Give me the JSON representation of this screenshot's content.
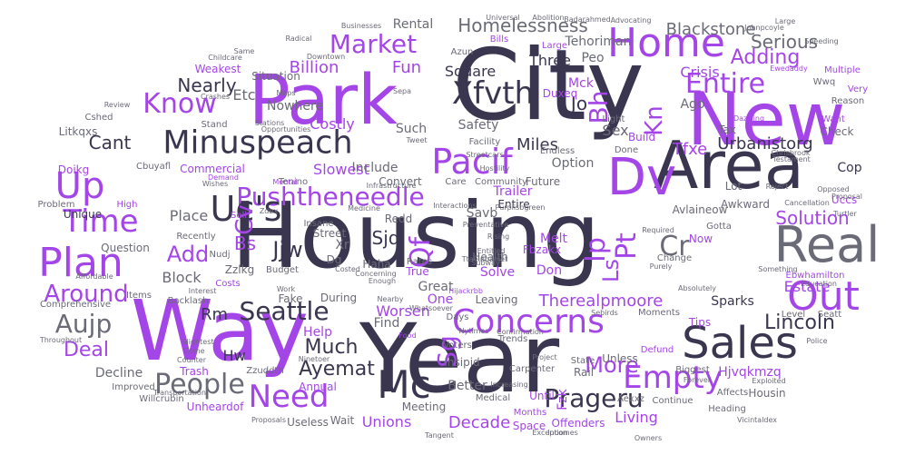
{
  "wordcloud": {
    "colors": {
      "dark": "#3a3650",
      "purple": "#a445e8",
      "gray": "#6b6b78",
      "light_purple": "#c56ff2"
    },
    "words": [
      "Housing",
      "Year",
      "City",
      "Way",
      "Park",
      "New",
      "Area",
      "Dv",
      "Real",
      "Home",
      "Concerns",
      "Pacif",
      "Plan",
      "Sales",
      "Out",
      "Up",
      "Minuspeach",
      "Pushtheneedle",
      "Time",
      "Seattle",
      "Empty",
      "Entire",
      "Market",
      "Mc",
      "Need",
      "Know",
      "Uc's",
      "Xfvth",
      "People",
      "Around",
      "Qf",
      "Ip",
      "Sg",
      "Pt",
      "Ls",
      "Cv",
      "Bh",
      "Kn",
      "Add",
      "Aujp",
      "Prageru",
      "Lincoln",
      "Solution",
      "Jjw",
      "Cr",
      "Homelessness",
      "Blackstone",
      "Serious",
      "Adding",
      "Nearly",
      "Billion",
      "Deal",
      "Much",
      "Ayemat",
      "More",
      "Decade",
      "Unions",
      "Square",
      "Three",
      "Crisis",
      "Urbanistorg",
      "Tfxe",
      "Costly",
      "Cant",
      "Block",
      "Sex",
      "Miles",
      "Fun",
      "Etc",
      "Rm",
      "Hw",
      "Slowest",
      "Sjq",
      "Estate",
      "Therealpmoore",
      "Worsen",
      "Zzlkg",
      "Place",
      "Bs",
      "Tehoriman",
      "Rental",
      "Nowhere",
      "Annual",
      "Sparks",
      "Living",
      "Safety",
      "Mck",
      "Jo",
      "Ago",
      "Commercial",
      "Help",
      "Weakest",
      "Situation",
      "Entire",
      "Better",
      "Find",
      "Trailer",
      "Savb",
      "Option",
      "Large",
      "Litkqxs",
      "Doikg",
      "Unique",
      "Question",
      "Comprehensive",
      "Decline",
      "Improved",
      "Willcrubin",
      "Unheardof",
      "Trash",
      "Useless",
      "Wait",
      "Meeting",
      "Insipid",
      "Space",
      "Months",
      "Duxeq",
      "Until",
      "Fzk",
      "Aexxz",
      "Heading",
      "Hjvqkmzq",
      "Biggest",
      "Affects",
      "Housin",
      "Level",
      "Seatt",
      "Ebwhamilton",
      "Police",
      "Tips",
      "Moments",
      "Unless",
      "Rail",
      "Defund",
      "Carpenter",
      "Project",
      "State",
      "Offenders",
      "Cop",
      "Uccs",
      "Turtler",
      "Lot",
      "Awkward",
      "Avlaineow",
      "Now",
      "Don",
      "Melt",
      "Fbzakx",
      "Solve",
      "Great",
      "Include",
      "Convert",
      "Community",
      "Future",
      "Endless",
      "Done",
      "Build",
      "Light",
      "Tax",
      "Check",
      "Reason",
      "Very",
      "Want",
      "Dazzling",
      "Multiple",
      "Ewedaddy",
      "Wwq",
      "Large",
      "Peo",
      "Azun",
      "Bills",
      "Businesses",
      "Radical",
      "Same",
      "Review",
      "Cshed",
      "Stand",
      "Maps",
      "Sepa",
      "Tweet",
      "Such",
      "Facility",
      "Care",
      "Tenino",
      "Cbuyafl",
      "Problem",
      "High",
      "Affordable",
      "Items",
      "Backlash",
      "Interest",
      "Budget",
      "Recently",
      "Zdbx",
      "Sell",
      "Insane",
      "Street",
      "Redd",
      "Rates",
      "Enough",
      "One",
      "True",
      "Health",
      "During",
      "Leaving",
      "Voters",
      "Food",
      "Days",
      "Nytimes",
      "Trends",
      "Counter",
      "Come",
      "Slightest",
      "Throughout",
      "Zzuddth",
      "Ninetoer",
      "Increasing",
      "Exploited",
      "Incomes",
      "Exception",
      "Owners",
      "Continue",
      "Forever",
      "Medical",
      "Confirmation",
      "Sebirds",
      "Required",
      "Change",
      "Purely",
      "Absolutely",
      "Something",
      "Education",
      "Proposal",
      "Reject",
      "Testament",
      "Chrisbrook",
      "Speeding",
      "Johnpcoyle",
      "Advocating",
      "Badarahmed",
      "Abolition",
      "Universal",
      "Childcare",
      "Downtown",
      "Stations",
      "Opportunities",
      "Crashes",
      "Demand",
      "Wishes",
      "Medicine",
      "Interactions",
      "Purplisbgreen",
      "Proposals",
      "Tangent",
      "Vicintaldex",
      "Cancellation",
      "Opposed",
      "Gotta",
      "Haha",
      "Fake",
      "Work",
      "Costs",
      "Nudj",
      "Rising",
      "Hostility",
      "Streetcars",
      "Hijackrbb",
      "Entitled",
      "Whatsoever",
      "Concerning",
      "Infrastructure",
      "Costed",
      "Nearby",
      "Dg",
      "Xr",
      "Mental",
      "Ttaeinbanjet",
      "Subway",
      "Preventative",
      "Transportation"
    ]
  }
}
